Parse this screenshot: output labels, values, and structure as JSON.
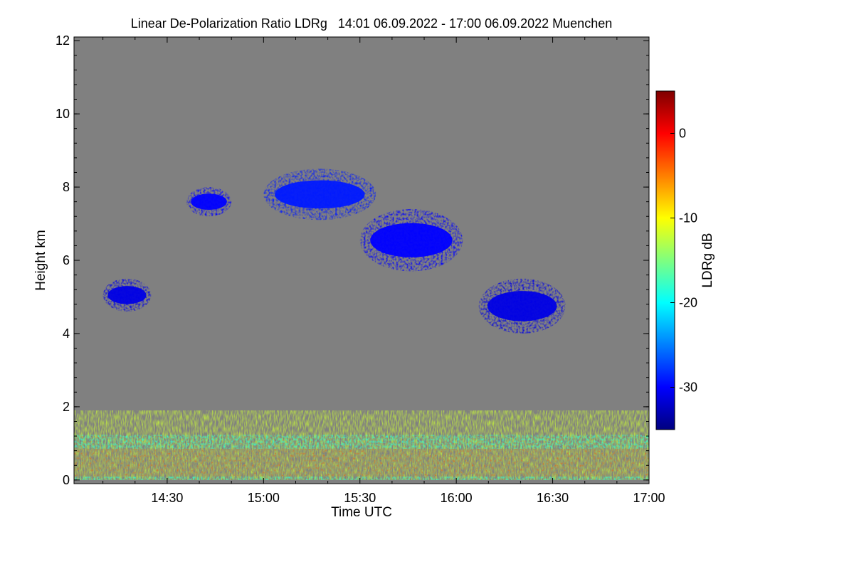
{
  "chart_data": {
    "type": "heatmap",
    "title": "Linear De-Polarization Ratio LDRg   14:01 06.09.2022 - 17:00 06.09.2022 Muenchen",
    "xlabel": "Time UTC",
    "ylabel": "Height km",
    "xlim": [
      841,
      1020
    ],
    "ylim": [
      -0.1,
      12.1
    ],
    "x_ticks": [
      {
        "value": 870,
        "label": "14:30"
      },
      {
        "value": 900,
        "label": "15:00"
      },
      {
        "value": 930,
        "label": "15:30"
      },
      {
        "value": 960,
        "label": "16:00"
      },
      {
        "value": 990,
        "label": "16:30"
      },
      {
        "value": 1020,
        "label": "17:00"
      }
    ],
    "y_ticks": [
      {
        "value": 0,
        "label": "0"
      },
      {
        "value": 2,
        "label": "2"
      },
      {
        "value": 4,
        "label": "4"
      },
      {
        "value": 6,
        "label": "6"
      },
      {
        "value": 8,
        "label": "8"
      },
      {
        "value": 10,
        "label": "10"
      },
      {
        "value": 12,
        "label": "12"
      }
    ],
    "colorbar": {
      "label": "LDRg dB",
      "range": [
        -35,
        5
      ],
      "ticks": [
        {
          "value": 0,
          "label": "0"
        },
        {
          "value": -10,
          "label": "-10"
        },
        {
          "value": -20,
          "label": "-20"
        },
        {
          "value": -30,
          "label": "-30"
        }
      ]
    },
    "colors": {
      "background": "#808080",
      "colormap": [
        "#00007f",
        "#0000ff",
        "#007fff",
        "#00ffff",
        "#7fff7f",
        "#ffff00",
        "#ff7f00",
        "#ff0000",
        "#7f0000"
      ]
    },
    "features": [
      {
        "name": "boundary layer",
        "t_start": 841,
        "t_end": 1020,
        "h_bottom": 0.0,
        "h_top": 1.9,
        "ldr_db": -12
      },
      {
        "name": "cloud layer 1",
        "t_start": 850,
        "t_end": 865,
        "h_bottom": 4.6,
        "h_top": 5.5,
        "ldr_db": -31
      },
      {
        "name": "cloud layer 2",
        "t_start": 876,
        "t_end": 890,
        "h_bottom": 7.2,
        "h_top": 8.0,
        "ldr_db": -30
      },
      {
        "name": "cloud layer 3",
        "t_start": 900,
        "t_end": 935,
        "h_bottom": 7.1,
        "h_top": 8.5,
        "ldr_db": -29
      },
      {
        "name": "cloud layer 4",
        "t_start": 930,
        "t_end": 962,
        "h_bottom": 5.7,
        "h_top": 7.4,
        "ldr_db": -30
      },
      {
        "name": "cloud layer 5",
        "t_start": 967,
        "t_end": 994,
        "h_bottom": 4.0,
        "h_top": 5.5,
        "ldr_db": -31
      }
    ]
  }
}
